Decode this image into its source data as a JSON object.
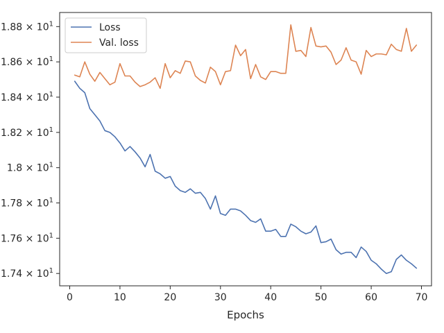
{
  "chart_data": {
    "type": "line",
    "xlabel": "Epochs",
    "ylabel": "",
    "xlim": [
      -2,
      72
    ],
    "ylim": [
      17.33,
      18.88
    ],
    "xticks": [
      0,
      10,
      20,
      30,
      40,
      50,
      60,
      70
    ],
    "xtick_labels": [
      "0",
      "10",
      "20",
      "30",
      "40",
      "50",
      "60",
      "70"
    ],
    "yticks": [
      17.4,
      17.6,
      17.8,
      18.0,
      18.2,
      18.4,
      18.6,
      18.8
    ],
    "ytick_labels": [
      {
        "mantissa": "1.74",
        "exp": "1"
      },
      {
        "mantissa": "1.76",
        "exp": "1"
      },
      {
        "mantissa": "1.78",
        "exp": "1"
      },
      {
        "mantissa": "1.8",
        "exp": "1"
      },
      {
        "mantissa": "1.82",
        "exp": "1"
      },
      {
        "mantissa": "1.84",
        "exp": "1"
      },
      {
        "mantissa": "1.86",
        "exp": "1"
      },
      {
        "mantissa": "1.88",
        "exp": "1"
      }
    ],
    "legend_position": "top-left",
    "grid": false,
    "series": [
      {
        "name": "Loss",
        "color": "#4c72b0",
        "x": [
          1,
          2,
          3,
          4,
          5,
          6,
          7,
          8,
          9,
          10,
          11,
          12,
          13,
          14,
          15,
          16,
          17,
          18,
          19,
          20,
          21,
          22,
          23,
          24,
          25,
          26,
          27,
          28,
          29,
          30,
          31,
          32,
          33,
          34,
          35,
          36,
          37,
          38,
          39,
          40,
          41,
          42,
          43,
          44,
          45,
          46,
          47,
          48,
          49,
          50,
          51,
          52,
          53,
          54,
          55,
          56,
          57,
          58,
          59,
          60,
          61,
          62,
          63,
          64,
          65,
          66,
          67,
          68,
          69
        ],
        "values": [
          18.49,
          18.45,
          18.425,
          18.335,
          18.3,
          18.265,
          18.21,
          18.2,
          18.175,
          18.14,
          18.095,
          18.12,
          18.09,
          18.055,
          18.005,
          18.075,
          17.98,
          17.965,
          17.94,
          17.95,
          17.895,
          17.87,
          17.86,
          17.88,
          17.855,
          17.86,
          17.825,
          17.765,
          17.84,
          17.74,
          17.73,
          17.765,
          17.765,
          17.755,
          17.73,
          17.7,
          17.69,
          17.71,
          17.64,
          17.64,
          17.65,
          17.61,
          17.61,
          17.68,
          17.665,
          17.64,
          17.625,
          17.635,
          17.67,
          17.575,
          17.58,
          17.595,
          17.535,
          17.51,
          17.52,
          17.52,
          17.49,
          17.55,
          17.525,
          17.475,
          17.455,
          17.425,
          17.4,
          17.41,
          17.48,
          17.505,
          17.475,
          17.455,
          17.43
        ]
      },
      {
        "name": "Val. loss",
        "color": "#dd8452",
        "x": [
          1,
          2,
          3,
          4,
          5,
          6,
          7,
          8,
          9,
          10,
          11,
          12,
          13,
          14,
          15,
          16,
          17,
          18,
          19,
          20,
          21,
          22,
          23,
          24,
          25,
          26,
          27,
          28,
          29,
          30,
          31,
          32,
          33,
          34,
          35,
          36,
          37,
          38,
          39,
          40,
          41,
          42,
          43,
          44,
          45,
          46,
          47,
          48,
          49,
          50,
          51,
          52,
          53,
          54,
          55,
          56,
          57,
          58,
          59,
          60,
          61,
          62,
          63,
          64,
          65,
          66,
          67,
          68,
          69
        ],
        "values": [
          18.525,
          18.515,
          18.6,
          18.53,
          18.49,
          18.54,
          18.505,
          18.47,
          18.485,
          18.59,
          18.52,
          18.52,
          18.485,
          18.46,
          18.47,
          18.485,
          18.51,
          18.45,
          18.59,
          18.51,
          18.55,
          18.535,
          18.605,
          18.6,
          18.52,
          18.495,
          18.48,
          18.57,
          18.545,
          18.47,
          18.545,
          18.55,
          18.695,
          18.635,
          18.67,
          18.505,
          18.585,
          18.515,
          18.5,
          18.545,
          18.545,
          18.535,
          18.535,
          18.81,
          18.66,
          18.665,
          18.63,
          18.795,
          18.69,
          18.685,
          18.69,
          18.655,
          18.585,
          18.61,
          18.68,
          18.61,
          18.6,
          18.53,
          18.665,
          18.63,
          18.645,
          18.645,
          18.64,
          18.7,
          18.67,
          18.66,
          18.79,
          18.66,
          18.695
        ]
      }
    ]
  }
}
